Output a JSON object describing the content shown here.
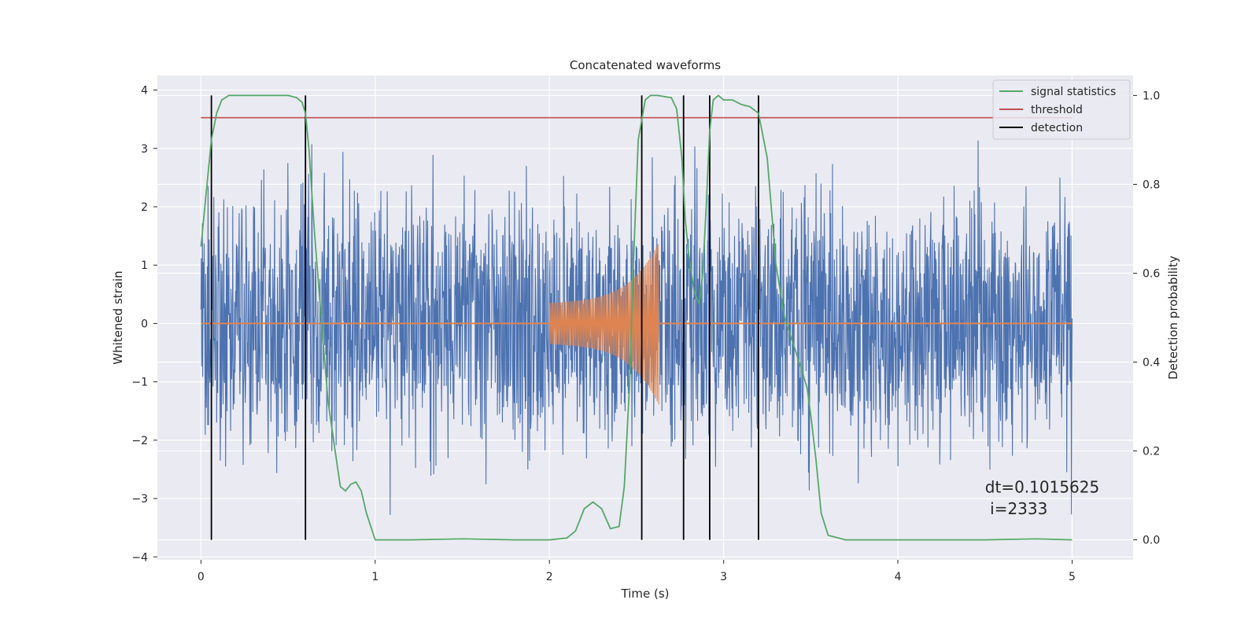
{
  "chart_data": {
    "type": "line",
    "title": "Concatenated waveforms",
    "xlabel": "Time (s)",
    "ylabel": "Whitened strain",
    "ylabel_right": "Detection probability",
    "xlim": [
      -0.25,
      5.35
    ],
    "ylim": [
      -4.05,
      4.25
    ],
    "ylim_right": [
      -0.045,
      1.045
    ],
    "x_ticks": [
      0,
      1,
      2,
      3,
      4,
      5
    ],
    "x_tick_labels": [
      "0",
      "1",
      "2",
      "3",
      "4",
      "5"
    ],
    "y_ticks": [
      -4,
      -3,
      -2,
      -1,
      0,
      1,
      2,
      3,
      4
    ],
    "y_tick_labels": [
      "−4",
      "−3",
      "−2",
      "−1",
      "0",
      "1",
      "2",
      "3",
      "4"
    ],
    "y_right_ticks": [
      0.0,
      0.2,
      0.4,
      0.6,
      0.8,
      1.0
    ],
    "y_right_tick_labels": [
      "0.0",
      "0.2",
      "0.4",
      "0.6",
      "0.8",
      "1.0"
    ],
    "grid": true,
    "legend_position": "top-right",
    "colors": {
      "background": "#eaeaf2",
      "grid": "#ffffff",
      "strain": "#4c72b0",
      "template": "#dd8452",
      "signal_statistics": "#55a868",
      "threshold": "#c44e52",
      "detection": "#000000"
    },
    "series": [
      {
        "name": "signal statistics",
        "axis": "right",
        "x": [
          0,
          0.03,
          0.06,
          0.09,
          0.12,
          0.16,
          0.2,
          0.3,
          0.4,
          0.5,
          0.55,
          0.58,
          0.6,
          0.62,
          0.65,
          0.7,
          0.73,
          0.77,
          0.8,
          0.83,
          0.86,
          0.89,
          0.92,
          0.95,
          1.0,
          1.2,
          1.5,
          1.8,
          2.0,
          2.1,
          2.15,
          2.2,
          2.25,
          2.3,
          2.35,
          2.4,
          2.43,
          2.46,
          2.48,
          2.51,
          2.55,
          2.58,
          2.62,
          2.7,
          2.73,
          2.76,
          2.78,
          2.8,
          2.83,
          2.86,
          2.88,
          2.9,
          2.92,
          2.94,
          2.97,
          3.0,
          3.05,
          3.1,
          3.15,
          3.2,
          3.25,
          3.3,
          3.35,
          3.4,
          3.45,
          3.48,
          3.5,
          3.53,
          3.56,
          3.6,
          3.7,
          4.0,
          4.5,
          4.8,
          5.0
        ],
        "y": [
          0.66,
          0.78,
          0.9,
          0.96,
          0.99,
          1.0,
          1.0,
          1.0,
          1.0,
          1.0,
          0.995,
          0.985,
          0.96,
          0.88,
          0.7,
          0.45,
          0.31,
          0.2,
          0.12,
          0.11,
          0.125,
          0.13,
          0.11,
          0.06,
          0.0,
          0.0,
          0.002,
          0.0,
          0.0,
          0.004,
          0.02,
          0.07,
          0.085,
          0.07,
          0.025,
          0.03,
          0.12,
          0.35,
          0.6,
          0.9,
          0.99,
          1.0,
          1.0,
          0.995,
          0.97,
          0.86,
          0.72,
          0.64,
          0.56,
          0.53,
          0.6,
          0.75,
          0.92,
          0.99,
          1.0,
          0.99,
          0.99,
          0.98,
          0.975,
          0.96,
          0.86,
          0.62,
          0.5,
          0.44,
          0.38,
          0.34,
          0.28,
          0.18,
          0.06,
          0.01,
          0.0,
          0.0,
          0.0,
          0.002,
          0.0
        ]
      },
      {
        "name": "threshold",
        "axis": "right",
        "x": [
          0,
          5
        ],
        "y": [
          0.95,
          0.95
        ]
      },
      {
        "name": "detection",
        "axis": "right",
        "x": [
          0.06,
          0.6,
          2.53,
          2.77,
          2.92,
          3.2
        ],
        "y_range": [
          0.0,
          1.0
        ]
      },
      {
        "name": "",
        "axis": "left",
        "kind": "noise",
        "x_range": [
          0,
          5
        ],
        "typical_abs": 0.8,
        "peak_max": 3.9,
        "peak_min": -3.7
      },
      {
        "name": "",
        "axis": "left",
        "kind": "chirp",
        "x_range": [
          2.0,
          2.63
        ],
        "amplitude_start": 0.35,
        "amplitude_end": 1.25,
        "baseline": 0.0
      }
    ],
    "annotations": [
      {
        "text": "dt=0.1015625",
        "x": 4.5,
        "y": -2.9
      },
      {
        "text": " i=2333",
        "x": 4.5,
        "y": -3.27
      }
    ]
  }
}
